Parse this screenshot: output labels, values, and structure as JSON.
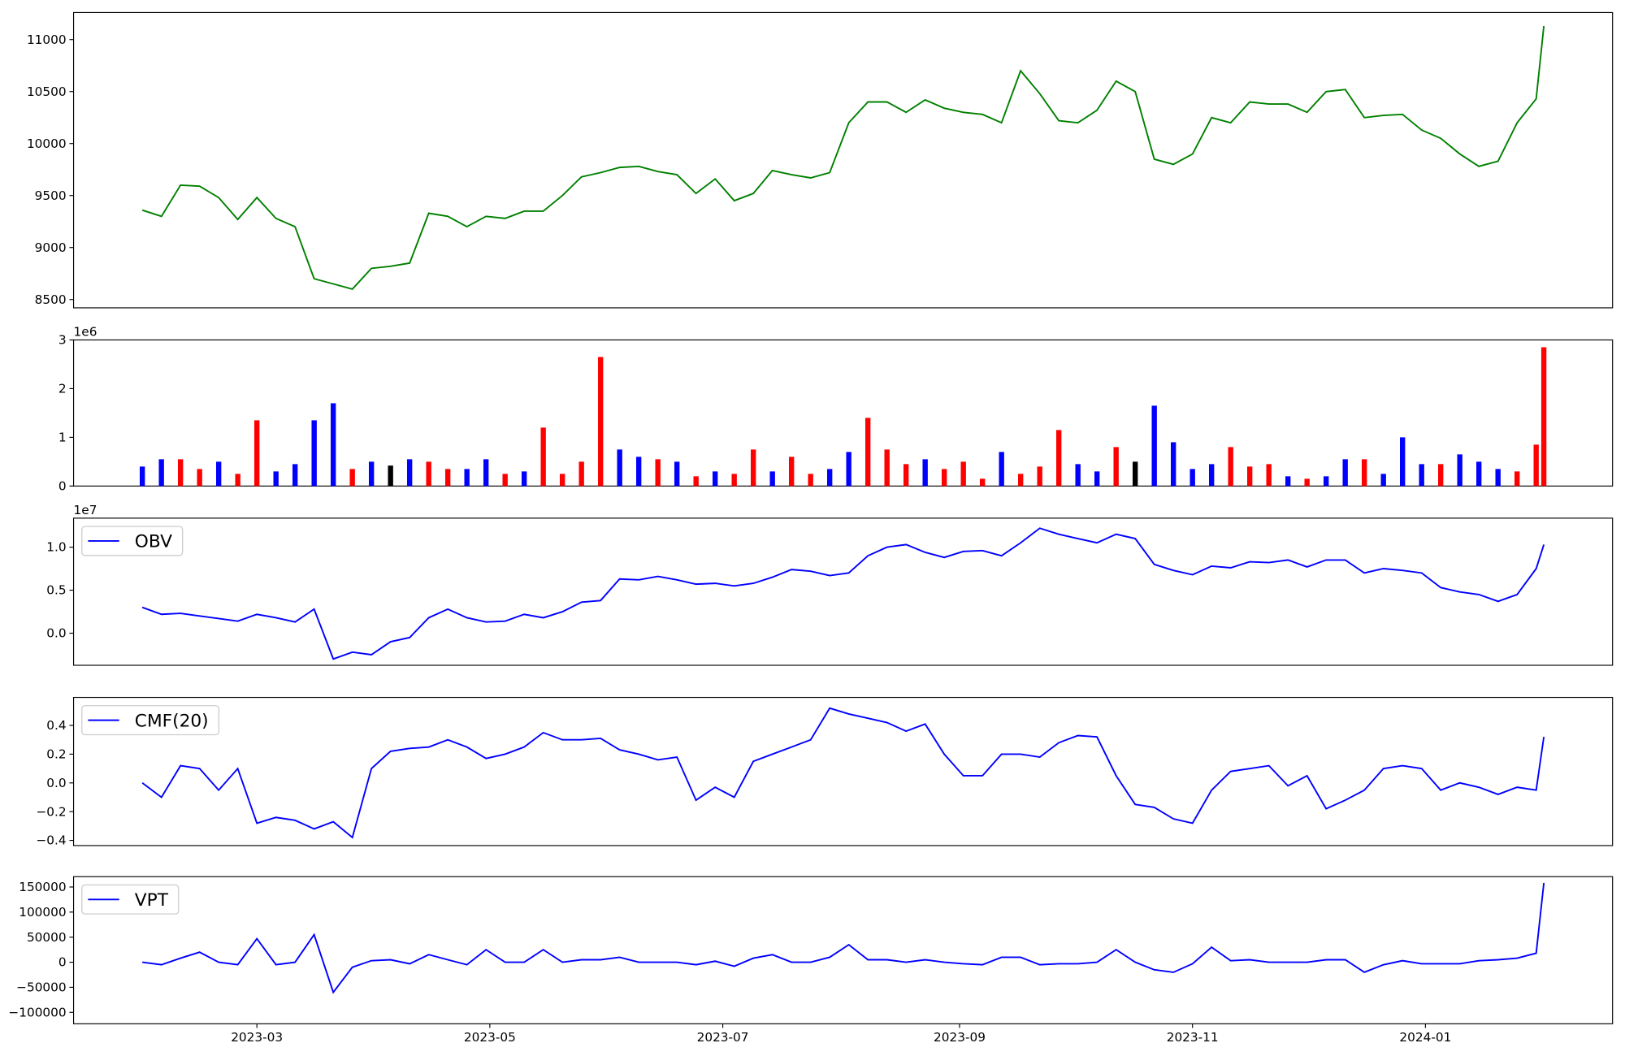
{
  "chart_data": [
    {
      "type": "line",
      "x": [
        29,
        34,
        39,
        44,
        49,
        54,
        59,
        64,
        69,
        74,
        79,
        84,
        89,
        94,
        99,
        104,
        109,
        114,
        119,
        124,
        129,
        134,
        139,
        144,
        149,
        154,
        159,
        164,
        169,
        174,
        179,
        184,
        189,
        194,
        199,
        204,
        209,
        214,
        219,
        224,
        229,
        234,
        239,
        244,
        249,
        254,
        259,
        264,
        269,
        274,
        279,
        284,
        289,
        294,
        299,
        304,
        309,
        314,
        319,
        324,
        329,
        334,
        339,
        344,
        349,
        354,
        359,
        364,
        369,
        374,
        379,
        384,
        389,
        394,
        396
      ],
      "xlim": [
        11,
        414
      ],
      "ylim": [
        8420,
        11260
      ],
      "yticks": [
        8500,
        9000,
        9500,
        10000,
        10500,
        11000
      ],
      "series": [
        {
          "color": "#008000",
          "values": [
            9360,
            9300,
            9600,
            9590,
            9480,
            9270,
            9480,
            9280,
            9200,
            8700,
            8650,
            8600,
            8800,
            8820,
            8850,
            9330,
            9300,
            9200,
            9300,
            9280,
            9350,
            9350,
            9500,
            9680,
            9720,
            9770,
            9780,
            9730,
            9700,
            9520,
            9660,
            9450,
            9520,
            9740,
            9700,
            9670,
            9720,
            10200,
            10400,
            10400,
            10300,
            10420,
            10340,
            10300,
            10280,
            10200,
            10700,
            10480,
            10220,
            10200,
            10320,
            10600,
            10500,
            9850,
            9800,
            9900,
            10250,
            10200,
            10400,
            10380,
            10380,
            10300,
            10500,
            10520,
            10250,
            10270,
            10280,
            10130,
            10050,
            9900,
            9780,
            9830,
            10200,
            10430,
            11130
          ]
        }
      ]
    },
    {
      "type": "bar",
      "x": [
        29,
        34,
        39,
        44,
        49,
        54,
        59,
        64,
        69,
        74,
        79,
        84,
        89,
        94,
        99,
        104,
        109,
        114,
        119,
        124,
        129,
        134,
        139,
        144,
        149,
        154,
        159,
        164,
        169,
        174,
        179,
        184,
        189,
        194,
        199,
        204,
        209,
        214,
        219,
        224,
        229,
        234,
        239,
        244,
        249,
        254,
        259,
        264,
        269,
        274,
        279,
        284,
        289,
        294,
        299,
        304,
        309,
        314,
        319,
        324,
        329,
        334,
        339,
        344,
        349,
        354,
        359,
        364,
        369,
        374,
        379,
        384,
        389,
        394,
        396
      ],
      "xlim": [
        11,
        414
      ],
      "ylim": [
        0,
        3000000
      ],
      "y_offset_label": "1e6",
      "yticks": [
        0,
        {
          "value": 1000000,
          "label": "1"
        },
        {
          "value": 2000000,
          "label": "2"
        },
        {
          "value": 3000000,
          "label": "3"
        }
      ],
      "series": [
        {
          "values": [
            400000,
            550000,
            550000,
            350000,
            500000,
            250000,
            1350000,
            300000,
            450000,
            1350000,
            1700000,
            350000,
            500000,
            420000,
            550000,
            500000,
            350000,
            350000,
            550000,
            250000,
            300000,
            1200000,
            250000,
            500000,
            2650000,
            750000,
            600000,
            550000,
            500000,
            200000,
            300000,
            250000,
            750000,
            300000,
            600000,
            250000,
            350000,
            700000,
            1400000,
            750000,
            450000,
            550000,
            350000,
            500000,
            150000,
            700000,
            250000,
            400000,
            1150000,
            450000,
            300000,
            800000,
            500000,
            1650000,
            900000,
            350000,
            450000,
            800000,
            400000,
            450000,
            200000,
            150000,
            200000,
            550000,
            550000,
            250000,
            1000000,
            450000,
            450000,
            650000,
            500000,
            350000,
            300000,
            850000,
            2850000
          ],
          "colors": [
            "#0000ff",
            "#0000ff",
            "#ff0000",
            "#ff0000",
            "#0000ff",
            "#ff0000",
            "#ff0000",
            "#0000ff",
            "#0000ff",
            "#0000ff",
            "#0000ff",
            "#ff0000",
            "#0000ff",
            "#000000",
            "#0000ff",
            "#ff0000",
            "#ff0000",
            "#0000ff",
            "#0000ff",
            "#ff0000",
            "#0000ff",
            "#ff0000",
            "#ff0000",
            "#ff0000",
            "#ff0000",
            "#0000ff",
            "#0000ff",
            "#ff0000",
            "#0000ff",
            "#ff0000",
            "#0000ff",
            "#ff0000",
            "#ff0000",
            "#0000ff",
            "#ff0000",
            "#ff0000",
            "#0000ff",
            "#0000ff",
            "#ff0000",
            "#ff0000",
            "#ff0000",
            "#0000ff",
            "#ff0000",
            "#ff0000",
            "#ff0000",
            "#0000ff",
            "#ff0000",
            "#ff0000",
            "#ff0000",
            "#0000ff",
            "#0000ff",
            "#ff0000",
            "#000000",
            "#0000ff",
            "#0000ff",
            "#0000ff",
            "#0000ff",
            "#ff0000",
            "#ff0000",
            "#ff0000",
            "#0000ff",
            "#ff0000",
            "#0000ff",
            "#0000ff",
            "#ff0000",
            "#0000ff",
            "#0000ff",
            "#0000ff",
            "#ff0000",
            "#0000ff",
            "#0000ff",
            "#0000ff",
            "#ff0000",
            "#ff0000",
            "#ff0000"
          ]
        }
      ]
    },
    {
      "type": "line",
      "x": [
        29,
        34,
        39,
        44,
        49,
        54,
        59,
        64,
        69,
        74,
        79,
        84,
        89,
        94,
        99,
        104,
        109,
        114,
        119,
        124,
        129,
        134,
        139,
        144,
        149,
        154,
        159,
        164,
        169,
        174,
        179,
        184,
        189,
        194,
        199,
        204,
        209,
        214,
        219,
        224,
        229,
        234,
        239,
        244,
        249,
        254,
        259,
        264,
        269,
        274,
        279,
        284,
        289,
        294,
        299,
        304,
        309,
        314,
        319,
        324,
        329,
        334,
        339,
        344,
        349,
        354,
        359,
        364,
        369,
        374,
        379,
        384,
        389,
        394,
        396
      ],
      "xlim": [
        11,
        414
      ],
      "ylim": [
        -3730000,
        13370000
      ],
      "y_offset_label": "1e7",
      "legend": "upper left",
      "yticks": [
        {
          "value": 0,
          "label": "0.0"
        },
        {
          "value": 5000000,
          "label": "0.5"
        },
        {
          "value": 10000000,
          "label": "1.0"
        }
      ],
      "series": [
        {
          "name": "OBV",
          "color": "#0000ff",
          "values": [
            3000000,
            2200000,
            2300000,
            2000000,
            1700000,
            1400000,
            2200000,
            1800000,
            1300000,
            2800000,
            -3000000,
            -2200000,
            -2500000,
            -1000000,
            -500000,
            1800000,
            2800000,
            1800000,
            1300000,
            1400000,
            2200000,
            1800000,
            2500000,
            3600000,
            3800000,
            6300000,
            6200000,
            6600000,
            6200000,
            5700000,
            5800000,
            5500000,
            5800000,
            6500000,
            7400000,
            7200000,
            6700000,
            7000000,
            9000000,
            10000000,
            10300000,
            9400000,
            8800000,
            9500000,
            9600000,
            9000000,
            10500000,
            12200000,
            11500000,
            11000000,
            10500000,
            11500000,
            11000000,
            8000000,
            7300000,
            6800000,
            7800000,
            7600000,
            8300000,
            8200000,
            8500000,
            7700000,
            8500000,
            8500000,
            7000000,
            7500000,
            7300000,
            7000000,
            5300000,
            4800000,
            4500000,
            3700000,
            4500000,
            7500000,
            10300000
          ]
        }
      ]
    },
    {
      "type": "line",
      "x": [
        29,
        34,
        39,
        44,
        49,
        54,
        59,
        64,
        69,
        74,
        79,
        84,
        89,
        94,
        99,
        104,
        109,
        114,
        119,
        124,
        129,
        134,
        139,
        144,
        149,
        154,
        159,
        164,
        169,
        174,
        179,
        184,
        189,
        194,
        199,
        204,
        209,
        214,
        219,
        224,
        229,
        234,
        239,
        244,
        249,
        254,
        259,
        264,
        269,
        274,
        279,
        284,
        289,
        294,
        299,
        304,
        309,
        314,
        319,
        324,
        329,
        334,
        339,
        344,
        349,
        354,
        359,
        364,
        369,
        374,
        379,
        384,
        389,
        394,
        396
      ],
      "xlim": [
        11,
        414
      ],
      "ylim": [
        -0.436,
        0.595
      ],
      "legend": "upper left",
      "yticks": [
        {
          "value": -0.4,
          "label": "−0.4"
        },
        {
          "value": -0.2,
          "label": "−0.2"
        },
        {
          "value": 0,
          "label": "0.0"
        },
        0.2,
        0.4
      ],
      "series": [
        {
          "name": "CMF(20)",
          "color": "#0000ff",
          "values": [
            0.0,
            -0.1,
            0.12,
            0.1,
            -0.05,
            0.1,
            -0.28,
            -0.24,
            -0.26,
            -0.32,
            -0.27,
            -0.38,
            0.1,
            0.22,
            0.24,
            0.25,
            0.3,
            0.25,
            0.17,
            0.2,
            0.25,
            0.35,
            0.3,
            0.3,
            0.31,
            0.23,
            0.2,
            0.16,
            0.18,
            -0.12,
            -0.03,
            -0.1,
            0.15,
            0.2,
            0.25,
            0.3,
            0.52,
            0.48,
            0.45,
            0.42,
            0.36,
            0.41,
            0.2,
            0.05,
            0.05,
            0.2,
            0.2,
            0.18,
            0.28,
            0.33,
            0.32,
            0.05,
            -0.15,
            -0.17,
            -0.25,
            -0.28,
            -0.05,
            0.08,
            0.1,
            0.12,
            -0.02,
            0.05,
            -0.18,
            -0.12,
            -0.05,
            0.1,
            0.12,
            0.1,
            -0.05,
            0.0,
            -0.03,
            -0.08,
            -0.03,
            -0.05,
            0.32
          ]
        }
      ]
    },
    {
      "type": "line",
      "x": [
        29,
        34,
        39,
        44,
        49,
        54,
        59,
        64,
        69,
        74,
        79,
        84,
        89,
        94,
        99,
        104,
        109,
        114,
        119,
        124,
        129,
        134,
        139,
        144,
        149,
        154,
        159,
        164,
        169,
        174,
        179,
        184,
        189,
        194,
        199,
        204,
        209,
        214,
        219,
        224,
        229,
        234,
        239,
        244,
        249,
        254,
        259,
        264,
        269,
        274,
        279,
        284,
        289,
        294,
        299,
        304,
        309,
        314,
        319,
        324,
        329,
        334,
        339,
        344,
        349,
        354,
        359,
        364,
        369,
        374,
        379,
        384,
        389,
        394,
        396
      ],
      "xlim": [
        11,
        414
      ],
      "ylim": [
        -122730,
        170660
      ],
      "legend": "upper left",
      "yticks": [
        {
          "value": -100000,
          "label": "−100000"
        },
        {
          "value": -50000,
          "label": "−50000"
        },
        0,
        50000,
        100000,
        150000
      ],
      "xticks": [
        {
          "value": 59,
          "label": "2023-03"
        },
        {
          "value": 120,
          "label": "2023-05"
        },
        {
          "value": 181,
          "label": "2023-07"
        },
        {
          "value": 243,
          "label": "2023-09"
        },
        {
          "value": 304,
          "label": "2023-11"
        },
        {
          "value": 365,
          "label": "2024-01"
        }
      ],
      "series": [
        {
          "name": "VPT",
          "color": "#0000ff",
          "values": [
            0,
            -5000,
            8000,
            20000,
            0,
            -5000,
            47000,
            -5000,
            0,
            55000,
            -60000,
            -10000,
            3000,
            5000,
            -3000,
            15000,
            5000,
            -5000,
            25000,
            0,
            0,
            25000,
            0,
            5000,
            5000,
            10000,
            0,
            0,
            0,
            -5000,
            2000,
            -8000,
            8000,
            15000,
            0,
            0,
            10000,
            35000,
            5000,
            5000,
            0,
            5000,
            0,
            -3000,
            -5000,
            10000,
            10000,
            -5000,
            -3000,
            -3000,
            0,
            25000,
            0,
            -15000,
            -20000,
            -3000,
            30000,
            3000,
            5000,
            0,
            0,
            0,
            5000,
            5000,
            -20000,
            -5000,
            3000,
            -3000,
            -3000,
            -3000,
            3000,
            5000,
            8000,
            18000,
            158000
          ]
        }
      ]
    }
  ]
}
